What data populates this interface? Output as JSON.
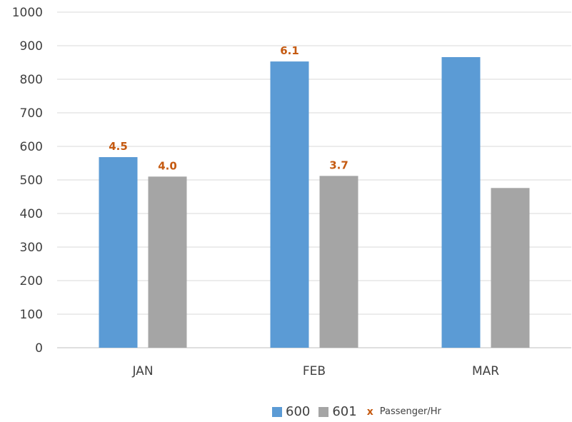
{
  "chart_data": {
    "type": "bar",
    "categories": [
      "JAN",
      "FEB",
      "MAR"
    ],
    "series": [
      {
        "name": "600",
        "values": [
          568,
          853,
          866
        ],
        "color": "#5B9BD5"
      },
      {
        "name": "601",
        "values": [
          510,
          512,
          476
        ],
        "color": "#A5A5A5"
      }
    ],
    "data_labels": {
      "series_name": "Passenger/Hr",
      "marker": "x",
      "color": "#C55A11",
      "600": [
        "4.5",
        "6.1",
        ""
      ],
      "601": [
        "4.0",
        "3.7",
        ""
      ]
    },
    "ylim": [
      0,
      1000
    ],
    "yticks": [
      0,
      100,
      200,
      300,
      400,
      500,
      600,
      700,
      800,
      900,
      1000
    ],
    "grid": true,
    "legend_position": "bottom-right"
  },
  "legend": {
    "items": [
      {
        "label": "600",
        "color": "#5B9BD5"
      },
      {
        "label": "601",
        "color": "#A5A5A5"
      }
    ],
    "marker_glyph": "x",
    "marker_label": "Passenger/Hr"
  }
}
